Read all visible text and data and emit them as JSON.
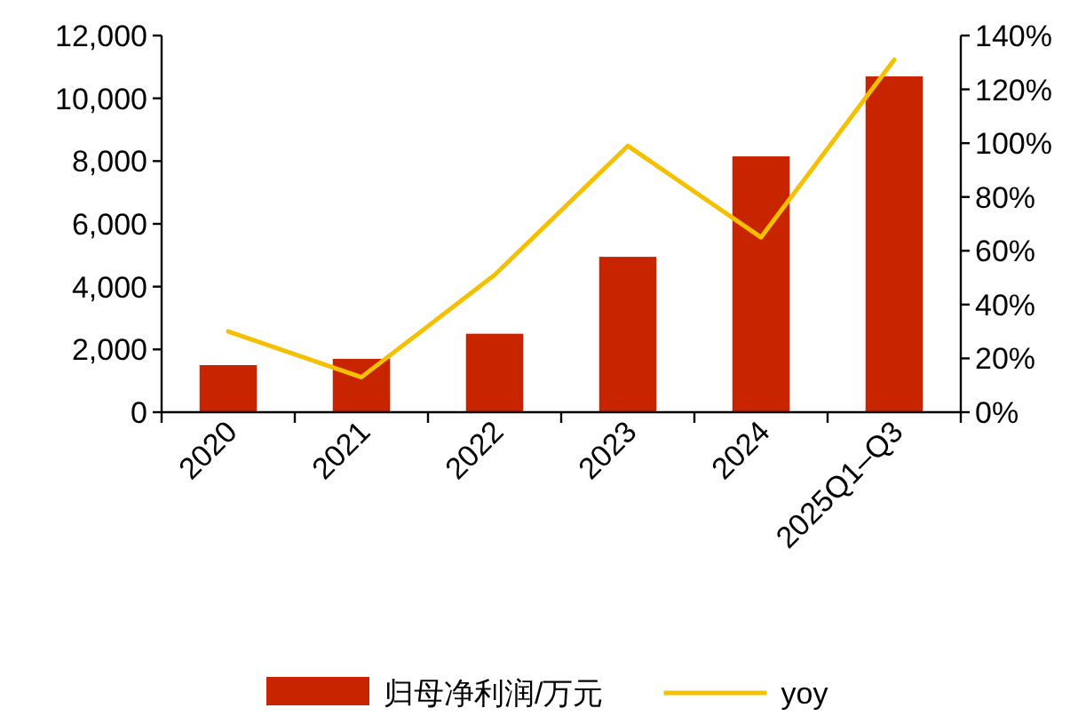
{
  "chart_data": {
    "type": "bar",
    "categories": [
      "2020",
      "2021",
      "2022",
      "2023",
      "2024",
      "2025Q1–Q3"
    ],
    "series": [
      {
        "name": "归母净利润/万元",
        "color": "#c82400",
        "values": [
          1500,
          1700,
          2500,
          4950,
          8150,
          10700
        ]
      },
      {
        "name": "yoy",
        "type": "line",
        "axis": "y2",
        "color": "#f5c000",
        "values": [
          30,
          13,
          51,
          99,
          65,
          131
        ]
      }
    ],
    "ylim": [
      0,
      12000
    ],
    "yticks": [
      0,
      {
        "value": 2000,
        "label": "2,000"
      },
      {
        "value": 4000,
        "label": "4,000"
      },
      {
        "value": 6000,
        "label": "6,000"
      },
      {
        "value": 8000,
        "label": "8,000"
      },
      {
        "value": 10000,
        "label": "10,000"
      },
      {
        "value": 12000,
        "label": "12,000"
      }
    ],
    "y2lim": [
      0,
      140
    ],
    "y2ticks": [
      {
        "value": 0,
        "label": "0%"
      },
      {
        "value": 20,
        "label": "20%"
      },
      {
        "value": 40,
        "label": "40%"
      },
      {
        "value": 60,
        "label": "60%"
      },
      {
        "value": 80,
        "label": "80%"
      },
      {
        "value": 100,
        "label": "100%"
      },
      {
        "value": 120,
        "label": "120%"
      },
      {
        "value": 140,
        "label": "140%"
      }
    ],
    "legend": "bottom",
    "grid": false,
    "marker": "none",
    "line_style": "solid"
  }
}
